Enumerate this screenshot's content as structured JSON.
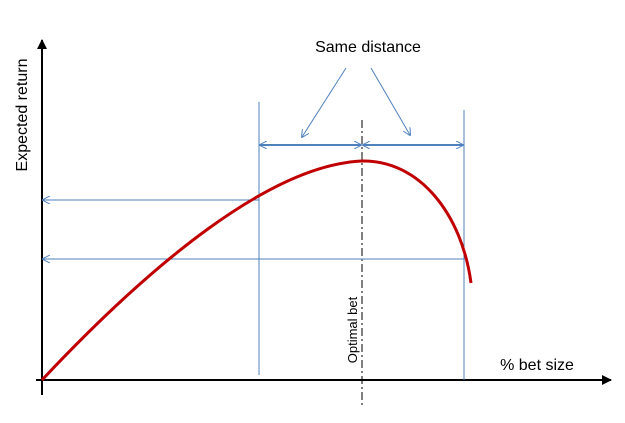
{
  "labels": {
    "annotation": "Same distance",
    "y_axis": "Expected return",
    "x_axis": "% bet size",
    "optimal": "Optimal bet"
  }
}
